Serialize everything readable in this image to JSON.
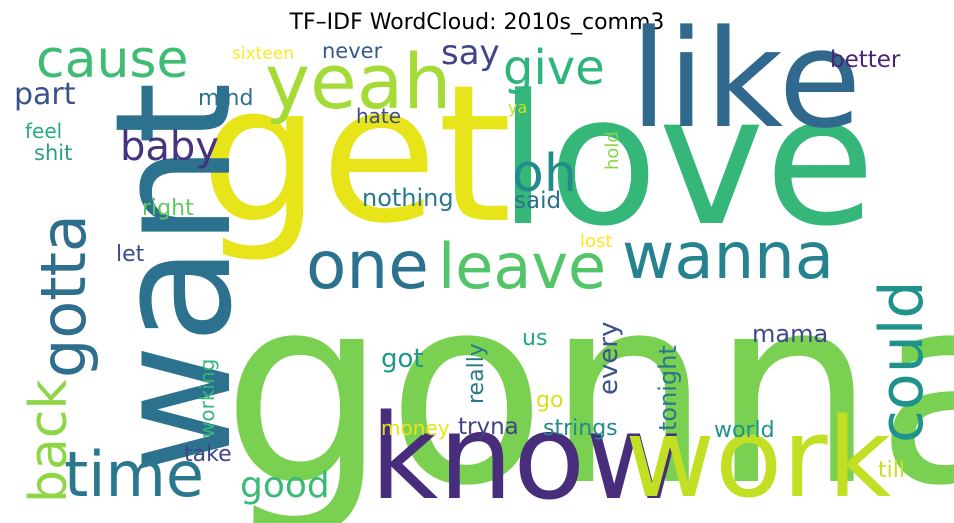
{
  "title": "TF–IDF WordCloud: 2010s_comm3",
  "words": [
    {
      "text": "gonna",
      "color": "#7ad151"
    },
    {
      "text": "get",
      "color": "#e7e419"
    },
    {
      "text": "love",
      "color": "#35b779"
    },
    {
      "text": "want",
      "color": "#2c728e"
    },
    {
      "text": "like",
      "color": "#31688e"
    },
    {
      "text": "know",
      "color": "#472d7b"
    },
    {
      "text": "work",
      "color": "#c2df23"
    },
    {
      "text": "yeah",
      "color": "#a5db36"
    },
    {
      "text": "time",
      "color": "#2a788e"
    },
    {
      "text": "one",
      "color": "#2c728e"
    },
    {
      "text": "leave",
      "color": "#52c569"
    },
    {
      "text": "wanna",
      "color": "#26828e"
    },
    {
      "text": "gotta",
      "color": "#2e6f8e"
    },
    {
      "text": "cause",
      "color": "#3fbc73"
    },
    {
      "text": "give",
      "color": "#2fb47c"
    },
    {
      "text": "could",
      "color": "#20928c"
    },
    {
      "text": "back",
      "color": "#8ed645"
    },
    {
      "text": "oh",
      "color": "#228c8d"
    },
    {
      "text": "baby",
      "color": "#46337e"
    },
    {
      "text": "good",
      "color": "#3aba76"
    },
    {
      "text": "say",
      "color": "#414487"
    },
    {
      "text": "part",
      "color": "#3b528b"
    },
    {
      "text": "mind",
      "color": "#2c728e"
    },
    {
      "text": "never",
      "color": "#38598c"
    },
    {
      "text": "better",
      "color": "#482475"
    },
    {
      "text": "sixteen",
      "color": "#fde725"
    },
    {
      "text": "feel",
      "color": "#27ad81"
    },
    {
      "text": "shit",
      "color": "#2a9f87"
    },
    {
      "text": "hate",
      "color": "#3d4d8a"
    },
    {
      "text": "ya",
      "color": "#cae11f"
    },
    {
      "text": "hold",
      "color": "#86d549"
    },
    {
      "text": "nothing",
      "color": "#2a788e"
    },
    {
      "text": "said",
      "color": "#2d708e"
    },
    {
      "text": "right",
      "color": "#5ec962"
    },
    {
      "text": "lost",
      "color": "#fde725"
    },
    {
      "text": "let",
      "color": "#3e4a89"
    },
    {
      "text": "every",
      "color": "#3b528b"
    },
    {
      "text": "really",
      "color": "#2a788e"
    },
    {
      "text": "us",
      "color": "#21a685"
    },
    {
      "text": "mama",
      "color": "#3e4989"
    },
    {
      "text": "got",
      "color": "#1f978b"
    },
    {
      "text": "working",
      "color": "#35b779"
    },
    {
      "text": "tonight",
      "color": "#2a788e"
    },
    {
      "text": "go",
      "color": "#d8e219"
    },
    {
      "text": "money",
      "color": "#e5e419"
    },
    {
      "text": "tryna",
      "color": "#414487"
    },
    {
      "text": "strings",
      "color": "#228c8d"
    },
    {
      "text": "world",
      "color": "#20928c"
    },
    {
      "text": "take",
      "color": "#3f4788"
    },
    {
      "text": "till",
      "color": "#c8e020"
    }
  ]
}
